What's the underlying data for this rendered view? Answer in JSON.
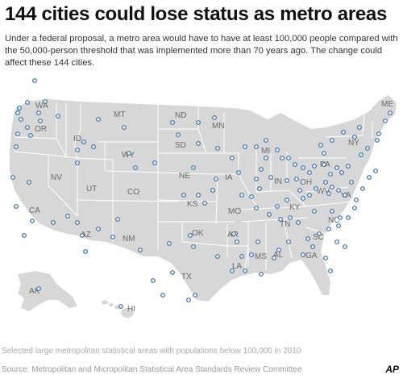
{
  "title": "144 cities could lose status as metro areas",
  "subtitle": "Under a federal proposal, a metro area would have to have at least 100,000 people compared with the 50,000-person threshold that was implemented more than 70 years ago. The change could affect these 144 cities.",
  "legend_caption": "Selected large metropolitan statistical areas with populations below 100,000 in 2010",
  "source": "Source: Metropolitan and Micropolitan Statistical Area Standards Review Committee",
  "credit": "AP",
  "colors": {
    "marker_stroke": "#2b6cb0",
    "land": "#d7d7d7",
    "state_border": "#ffffff",
    "label": "#6a6a6a"
  },
  "state_labels": [
    "WA",
    "OR",
    "ID",
    "MT",
    "ND",
    "MN",
    "SD",
    "WY",
    "NV",
    "UT",
    "CO",
    "NE",
    "IA",
    "KS",
    "MO",
    "CA",
    "AZ",
    "NM",
    "OK",
    "AR",
    "TX",
    "LA",
    "MS",
    "AL",
    "GA",
    "TN",
    "NC",
    "SC",
    "KY",
    "IN",
    "OH",
    "WV",
    "VA",
    "PA",
    "NY",
    "ME",
    "AK",
    "HI",
    "MI"
  ],
  "marker_count": 144
}
